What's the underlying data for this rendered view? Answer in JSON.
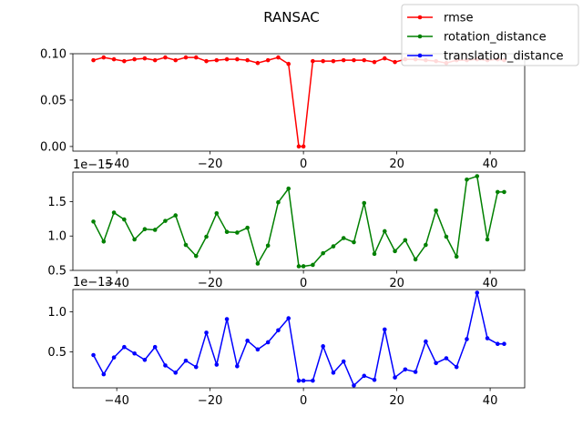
{
  "chart_data": {
    "type": "line",
    "title": "RANSAC",
    "x": [
      -45,
      -42.8,
      -40.6,
      -38.4,
      -36.2,
      -34,
      -31.8,
      -29.6,
      -27.4,
      -25.2,
      -23,
      -20.8,
      -18.6,
      -16.4,
      -14.2,
      -12,
      -9.8,
      -7.6,
      -5.4,
      -3.2,
      -1,
      0,
      2,
      4.2,
      6.4,
      8.6,
      10.8,
      13,
      15.2,
      17.4,
      19.6,
      21.8,
      24,
      26.2,
      28.4,
      30.6,
      32.8,
      35,
      37.2,
      39.4,
      41.6,
      43
    ],
    "legend": {
      "placement": "top-right",
      "entries": [
        "rmse",
        "rotation_distance",
        "translation_distance"
      ]
    },
    "subplots": [
      {
        "series": [
          {
            "name": "rmse",
            "color": "#ff0000",
            "values": [
              0.093,
              0.096,
              0.094,
              0.092,
              0.094,
              0.095,
              0.093,
              0.096,
              0.093,
              0.096,
              0.096,
              0.092,
              0.093,
              0.094,
              0.094,
              0.093,
              0.09,
              0.093,
              0.096,
              0.089,
              0.0,
              0.0,
              0.092,
              0.092,
              0.092,
              0.093,
              0.093,
              0.093,
              0.091,
              0.095,
              0.091,
              0.094,
              0.094,
              0.093,
              0.092,
              0.09,
              0.093,
              0.093,
              0.094,
              0.093,
              0.094,
              0.093
            ]
          }
        ],
        "ylim": [
          -0.005,
          0.1
        ],
        "yticks": [
          0.0,
          0.05,
          0.1
        ],
        "ytick_labels": [
          "0.00",
          "0.05",
          "0.10"
        ],
        "xticks": [
          -40,
          -20,
          0,
          20,
          40
        ],
        "xtick_labels": [
          "−40",
          "−20",
          "0",
          "20",
          "40"
        ],
        "offset": ""
      },
      {
        "series": [
          {
            "name": "rotation_distance",
            "color": "#008000",
            "values": [
              1.21,
              0.92,
              1.34,
              1.24,
              0.95,
              1.1,
              1.09,
              1.22,
              1.3,
              0.87,
              0.71,
              0.99,
              1.33,
              1.06,
              1.05,
              1.12,
              0.6,
              0.86,
              1.49,
              1.69,
              0.56,
              0.56,
              0.58,
              0.75,
              0.85,
              0.97,
              0.91,
              1.48,
              0.74,
              1.07,
              0.78,
              0.94,
              0.66,
              0.87,
              1.37,
              0.99,
              0.7,
              1.82,
              1.87,
              0.95,
              1.64,
              1.64
            ]
          }
        ],
        "ylim": [
          0.5,
          1.93
        ],
        "yticks": [
          0.5,
          1.0,
          1.5
        ],
        "ytick_labels": [
          "0.5",
          "1.0",
          "1.5"
        ],
        "xticks": [
          -40,
          -20,
          0,
          20,
          40
        ],
        "xtick_labels": [
          "−40",
          "−20",
          "0",
          "20",
          "40"
        ],
        "offset": "1e−15"
      },
      {
        "series": [
          {
            "name": "translation_distance",
            "color": "#0000ff",
            "values": [
              0.46,
              0.22,
              0.43,
              0.56,
              0.48,
              0.4,
              0.56,
              0.33,
              0.24,
              0.39,
              0.31,
              0.74,
              0.34,
              0.91,
              0.32,
              0.64,
              0.53,
              0.62,
              0.77,
              0.92,
              0.14,
              0.14,
              0.14,
              0.57,
              0.24,
              0.38,
              0.08,
              0.2,
              0.15,
              0.78,
              0.18,
              0.28,
              0.25,
              0.63,
              0.36,
              0.42,
              0.31,
              0.66,
              1.24,
              0.67,
              0.6,
              0.6
            ]
          }
        ],
        "ylim": [
          0.05,
          1.28
        ],
        "yticks": [
          0.5,
          1.0
        ],
        "ytick_labels": [
          "0.5",
          "1.0"
        ],
        "xticks": [
          -40,
          -20,
          0,
          20,
          40
        ],
        "xtick_labels": [
          "−40",
          "−20",
          "0",
          "20",
          "40"
        ],
        "offset": "1e−13"
      }
    ]
  }
}
